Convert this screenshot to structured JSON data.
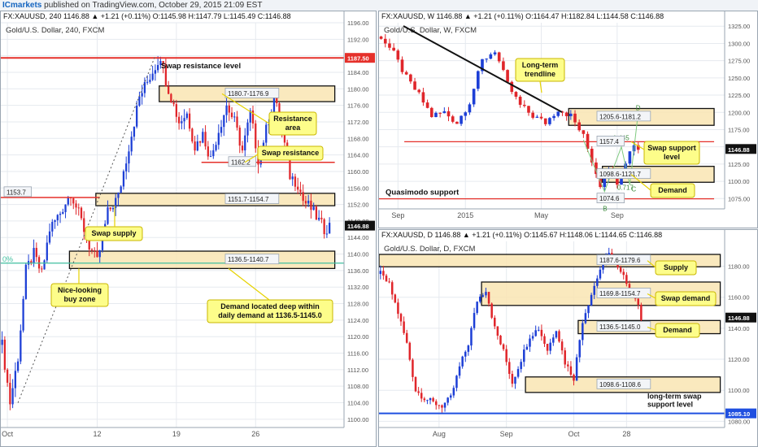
{
  "header": {
    "brand": "ICmarkets",
    "published": "published on TradingView.com, October 29, 2015 21:09 EST"
  },
  "panels": [
    {
      "key": "h4",
      "ohlc_line": "FX:XAUUSD, 240  1146.88  ▲ +1.21 (+0.11%)  O:1145.98  H:1147.79  L:1145.49  C:1146.88",
      "chart_data": {
        "type": "candlestick",
        "title": "Gold/U.S. Dollar, 240, FXCM",
        "ylim": [
          1098,
          1196
        ],
        "yticks": [
          1100,
          1104,
          1108,
          1112,
          1116,
          1120,
          1124,
          1128,
          1132,
          1136,
          1140,
          1144,
          1148,
          1152,
          1156,
          1160,
          1164,
          1168,
          1172,
          1176,
          1180,
          1184,
          1188,
          1192,
          1196
        ],
        "xticks": [
          {
            "label": "Oct",
            "i": 2
          },
          {
            "label": "12",
            "i": 36
          },
          {
            "label": "19",
            "i": 66
          },
          {
            "label": "26",
            "i": 96
          }
        ],
        "n_bars": 125,
        "last_price": "1146.88",
        "price_path": [
          [
            0,
            1118
          ],
          [
            3,
            1104
          ],
          [
            6,
            1115
          ],
          [
            9,
            1136
          ],
          [
            12,
            1140
          ],
          [
            15,
            1135
          ],
          [
            18,
            1146
          ],
          [
            22,
            1150
          ],
          [
            26,
            1155
          ],
          [
            30,
            1148
          ],
          [
            33,
            1142
          ],
          [
            36,
            1138
          ],
          [
            40,
            1150
          ],
          [
            44,
            1154
          ],
          [
            48,
            1166
          ],
          [
            52,
            1178
          ],
          [
            56,
            1183
          ],
          [
            60,
            1188
          ],
          [
            62,
            1182
          ],
          [
            64,
            1178
          ],
          [
            67,
            1172
          ],
          [
            70,
            1174
          ],
          [
            73,
            1166
          ],
          [
            76,
            1169
          ],
          [
            79,
            1163
          ],
          [
            82,
            1170
          ],
          [
            85,
            1176
          ],
          [
            88,
            1172
          ],
          [
            91,
            1165
          ],
          [
            94,
            1174
          ],
          [
            97,
            1163
          ],
          [
            100,
            1170
          ],
          [
            103,
            1178
          ],
          [
            106,
            1170
          ],
          [
            109,
            1159
          ],
          [
            112,
            1157
          ],
          [
            114,
            1153
          ],
          [
            117,
            1151
          ],
          [
            120,
            1148
          ],
          [
            122,
            1146
          ],
          [
            124,
            1146.88
          ]
        ],
        "zones": [
          {
            "label": "1180.7-1176.9",
            "low": 1176.9,
            "high": 1180.7,
            "i0": 60,
            "i1": 126
          },
          {
            "label": "1151.7-1154.7",
            "low": 1151.7,
            "high": 1154.7,
            "i0": 36,
            "i1": 126
          },
          {
            "label": "1136.5-1140.7",
            "low": 1136.5,
            "high": 1140.7,
            "i0": 26,
            "i1": 126
          }
        ],
        "lines": [
          {
            "label": "1187.50",
            "value": 1187.5,
            "color": "#e5302a",
            "width": 2
          },
          {
            "label": "1162.2",
            "value": 1162.2,
            "color": "#e5302a",
            "width": 1.5,
            "i0": 76,
            "i1": 126
          },
          {
            "label": "1153.7",
            "value": 1153.7,
            "color": "#e5302a",
            "width": 1.5,
            "i0": 0,
            "i1": 37
          },
          {
            "label": "",
            "value": 1137.8,
            "color": "#3fbf9f",
            "width": 1.2
          }
        ],
        "annotations": {
          "swap_res_level": "Swap resistance level",
          "resistance_area": "Resistance\narea",
          "swap_resistance": "Swap resistance",
          "swap_supply": "Swap supply",
          "nice_buy": "Nice-looking\nbuy zone",
          "demand_note": "Demand located deep within\ndaily demand at 1136.5-1145.0",
          "fib_label": "0%"
        }
      }
    },
    {
      "key": "weekly",
      "ohlc_line": "FX:XAUUSD, W  1146.88  ▲ +1.21 (+0.11%)  O:1164.47  H:1182.84  L:1144.58  C:1146.88",
      "chart_data": {
        "type": "candlestick",
        "title": "Gold/U.S. Dollar, W, FXCM",
        "ylim": [
          1060,
          1330
        ],
        "yticks": [
          1075,
          1100,
          1125,
          1150,
          1175,
          1200,
          1225,
          1250,
          1275,
          1300,
          1325
        ],
        "xticks": [
          {
            "label": "Sep",
            "i": 4
          },
          {
            "label": "2015",
            "i": 20
          },
          {
            "label": "May",
            "i": 38
          },
          {
            "label": "Sep",
            "i": 56
          }
        ],
        "n_bars": 62,
        "last_price": "1146.88",
        "price_path": [
          [
            0,
            1310
          ],
          [
            3,
            1285
          ],
          [
            6,
            1250
          ],
          [
            9,
            1225
          ],
          [
            12,
            1195
          ],
          [
            15,
            1200
          ],
          [
            18,
            1185
          ],
          [
            21,
            1215
          ],
          [
            24,
            1275
          ],
          [
            27,
            1290
          ],
          [
            30,
            1240
          ],
          [
            33,
            1210
          ],
          [
            36,
            1195
          ],
          [
            39,
            1185
          ],
          [
            42,
            1205
          ],
          [
            45,
            1195
          ],
          [
            48,
            1165
          ],
          [
            50,
            1130
          ],
          [
            52,
            1095
          ],
          [
            54,
            1120
          ],
          [
            56,
            1100
          ],
          [
            58,
            1130
          ],
          [
            60,
            1155
          ],
          [
            61,
            1146.88
          ]
        ],
        "zones": [
          {
            "label": "1205.6-1181.2",
            "low": 1181.2,
            "high": 1205.6,
            "i0": 45,
            "i1": 79
          },
          {
            "label": "1098.6-1121.7",
            "low": 1098.6,
            "high": 1121.7,
            "i0": 53,
            "i1": 79
          }
        ],
        "lines": [
          {
            "label": "1157.4",
            "value": 1157.4,
            "color": "#e5302a",
            "width": 1.3,
            "i0": 6,
            "i1": 79
          },
          {
            "label": "1074.6",
            "value": 1074.6,
            "color": "#e5302a",
            "width": 1.3,
            "i0": 0,
            "i1": 79
          }
        ],
        "annotations": {
          "trendline": "Long-term\ntrendline",
          "swap_support": "Swap support\nlevel",
          "demand": "Demand",
          "quasimodo": "Quasimodo support",
          "fib_1": "1.445",
          "fib_2": "0.717",
          "pt_d": "D",
          "pt_c": "C",
          "pt_b": "B"
        }
      }
    },
    {
      "key": "daily",
      "ohlc_line": "FX:XAUUSD, D  1146.88  ▲ +1.21 (+0.11%)  O:1145.67  H:1148.06  L:1144.65  C:1146.88",
      "chart_data": {
        "type": "candlestick",
        "title": "Gold/U.S. Dollar, D, FXCM",
        "ylim": [
          1076,
          1196
        ],
        "yticks": [
          1080,
          1100,
          1120,
          1140,
          1160,
          1180
        ],
        "xticks": [
          {
            "label": "Aug",
            "i": 20
          },
          {
            "label": "Sep",
            "i": 43
          },
          {
            "label": "Oct",
            "i": 66
          },
          {
            "label": "28",
            "i": 84
          }
        ],
        "n_bars": 90,
        "last_price": "1146.88",
        "price_path": [
          [
            0,
            1175
          ],
          [
            3,
            1168
          ],
          [
            6,
            1150
          ],
          [
            9,
            1130
          ],
          [
            12,
            1100
          ],
          [
            15,
            1095
          ],
          [
            18,
            1092
          ],
          [
            21,
            1090
          ],
          [
            24,
            1095
          ],
          [
            27,
            1115
          ],
          [
            30,
            1130
          ],
          [
            33,
            1158
          ],
          [
            36,
            1165
          ],
          [
            39,
            1140
          ],
          [
            42,
            1125
          ],
          [
            45,
            1105
          ],
          [
            48,
            1120
          ],
          [
            51,
            1135
          ],
          [
            54,
            1140
          ],
          [
            57,
            1126
          ],
          [
            60,
            1140
          ],
          [
            63,
            1118
          ],
          [
            66,
            1108
          ],
          [
            69,
            1145
          ],
          [
            72,
            1162
          ],
          [
            75,
            1178
          ],
          [
            78,
            1190
          ],
          [
            81,
            1178
          ],
          [
            84,
            1170
          ],
          [
            87,
            1160
          ],
          [
            89,
            1146.88
          ]
        ],
        "zones": [
          {
            "label": "1187.6-1179.6",
            "low": 1179.6,
            "high": 1187.6,
            "i0": 0,
            "i1": 116
          },
          {
            "label": "1169.8-1154.7",
            "low": 1154.7,
            "high": 1169.8,
            "i0": 35,
            "i1": 116
          },
          {
            "label": "1136.5-1145.0",
            "low": 1136.5,
            "high": 1145.0,
            "i0": 68,
            "i1": 116
          },
          {
            "label": "1098.6-1108.6",
            "low": 1098.6,
            "high": 1108.6,
            "i0": 50,
            "i1": 116
          }
        ],
        "lines": [
          {
            "label": "1085.10",
            "value": 1085.1,
            "color": "#1f4fe0",
            "width": 2
          }
        ],
        "annotations": {
          "supply": "Supply",
          "swap_demand": "Swap demand",
          "demand": "Demand",
          "lt_swap": "long-term swap\nsupport level"
        }
      }
    }
  ]
}
